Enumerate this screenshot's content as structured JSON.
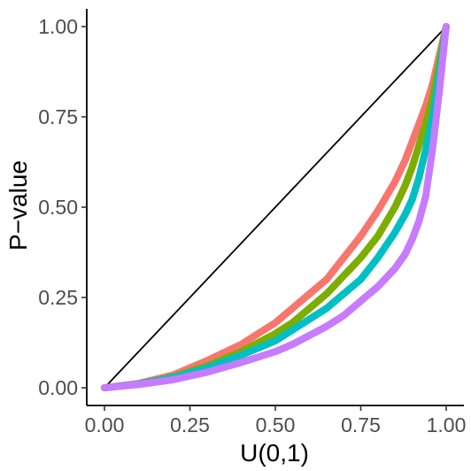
{
  "chart_data": {
    "type": "scatter",
    "xlabel": "U(0,1)",
    "ylabel": "P−value",
    "xlim": [
      0,
      1
    ],
    "ylim": [
      0,
      1
    ],
    "x_ticks": [
      "0.00",
      "0.25",
      "0.50",
      "0.75",
      "1.00"
    ],
    "y_ticks": [
      "0.00",
      "0.25",
      "0.50",
      "0.75",
      "1.00"
    ],
    "grid": false,
    "legend": "none",
    "reference_line": {
      "from": [
        0,
        0
      ],
      "to": [
        1,
        1
      ],
      "color": "#000000"
    },
    "series": [
      {
        "color": "#F8766D",
        "points": [
          [
            0,
            0
          ],
          [
            0.1,
            0.012
          ],
          [
            0.2,
            0.035
          ],
          [
            0.3,
            0.075
          ],
          [
            0.4,
            0.12
          ],
          [
            0.5,
            0.18
          ],
          [
            0.55,
            0.22
          ],
          [
            0.6,
            0.26
          ],
          [
            0.65,
            0.3
          ],
          [
            0.7,
            0.36
          ],
          [
            0.75,
            0.42
          ],
          [
            0.8,
            0.49
          ],
          [
            0.85,
            0.57
          ],
          [
            0.88,
            0.63
          ],
          [
            0.9,
            0.68
          ],
          [
            0.92,
            0.73
          ],
          [
            0.94,
            0.78
          ],
          [
            0.96,
            0.84
          ],
          [
            0.98,
            0.92
          ],
          [
            1,
            1
          ]
        ]
      },
      {
        "color": "#7CAE00",
        "points": [
          [
            0,
            0
          ],
          [
            0.1,
            0.01
          ],
          [
            0.2,
            0.03
          ],
          [
            0.3,
            0.06
          ],
          [
            0.4,
            0.1
          ],
          [
            0.5,
            0.15
          ],
          [
            0.55,
            0.18
          ],
          [
            0.6,
            0.22
          ],
          [
            0.65,
            0.26
          ],
          [
            0.7,
            0.31
          ],
          [
            0.75,
            0.36
          ],
          [
            0.8,
            0.42
          ],
          [
            0.85,
            0.5
          ],
          [
            0.88,
            0.56
          ],
          [
            0.9,
            0.61
          ],
          [
            0.92,
            0.67
          ],
          [
            0.94,
            0.73
          ],
          [
            0.96,
            0.8
          ],
          [
            0.98,
            0.9
          ],
          [
            1,
            1
          ]
        ]
      },
      {
        "color": "#00BFC4",
        "points": [
          [
            0,
            0
          ],
          [
            0.1,
            0.01
          ],
          [
            0.2,
            0.028
          ],
          [
            0.3,
            0.055
          ],
          [
            0.4,
            0.09
          ],
          [
            0.5,
            0.13
          ],
          [
            0.55,
            0.16
          ],
          [
            0.6,
            0.19
          ],
          [
            0.65,
            0.22
          ],
          [
            0.7,
            0.26
          ],
          [
            0.75,
            0.3
          ],
          [
            0.8,
            0.36
          ],
          [
            0.85,
            0.43
          ],
          [
            0.88,
            0.48
          ],
          [
            0.9,
            0.52
          ],
          [
            0.92,
            0.58
          ],
          [
            0.94,
            0.66
          ],
          [
            0.96,
            0.75
          ],
          [
            0.98,
            0.87
          ],
          [
            1,
            1
          ]
        ]
      },
      {
        "color": "#C77CFF",
        "points": [
          [
            0,
            0
          ],
          [
            0.1,
            0.009
          ],
          [
            0.2,
            0.022
          ],
          [
            0.3,
            0.043
          ],
          [
            0.4,
            0.07
          ],
          [
            0.5,
            0.1
          ],
          [
            0.55,
            0.12
          ],
          [
            0.6,
            0.145
          ],
          [
            0.65,
            0.17
          ],
          [
            0.7,
            0.2
          ],
          [
            0.75,
            0.24
          ],
          [
            0.8,
            0.28
          ],
          [
            0.85,
            0.33
          ],
          [
            0.88,
            0.37
          ],
          [
            0.9,
            0.41
          ],
          [
            0.92,
            0.46
          ],
          [
            0.94,
            0.53
          ],
          [
            0.96,
            0.66
          ],
          [
            0.98,
            0.82
          ],
          [
            1,
            1
          ]
        ]
      }
    ]
  }
}
